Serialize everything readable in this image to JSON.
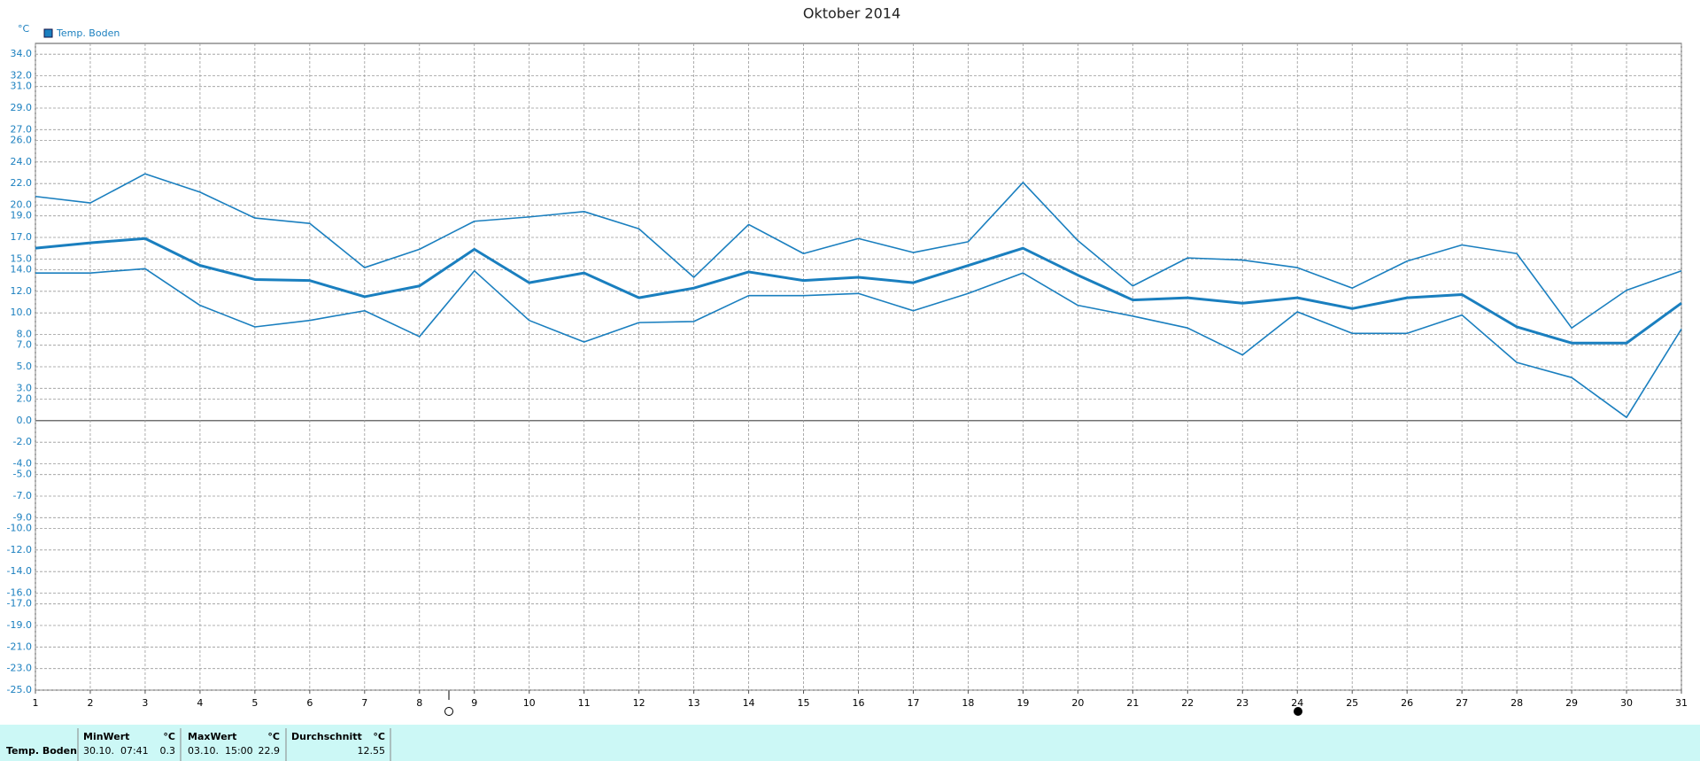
{
  "chart_data": {
    "type": "line",
    "title": "Oktober 2014",
    "y_unit": "°C",
    "legend": "Temp. Boden",
    "x": [
      1,
      2,
      3,
      4,
      5,
      6,
      7,
      8,
      9,
      10,
      11,
      12,
      13,
      14,
      15,
      16,
      17,
      18,
      19,
      20,
      21,
      22,
      23,
      24,
      25,
      26,
      27,
      28,
      29,
      30,
      31
    ],
    "xlim": [
      1,
      31
    ],
    "xticks": [
      1,
      2,
      3,
      4,
      5,
      6,
      7,
      8,
      9,
      10,
      11,
      12,
      13,
      14,
      15,
      16,
      17,
      18,
      19,
      20,
      21,
      22,
      23,
      24,
      25,
      26,
      27,
      28,
      29,
      30,
      31
    ],
    "ylim": [
      -25,
      35
    ],
    "yticks": [
      {
        "value": 34,
        "label": "34.0"
      },
      {
        "value": 32,
        "label": "32.0"
      },
      {
        "value": 31,
        "label": "31.0"
      },
      {
        "value": 29,
        "label": "29.0"
      },
      {
        "value": 27,
        "label": "27.0"
      },
      {
        "value": 26,
        "label": "26.0"
      },
      {
        "value": 24,
        "label": "24.0"
      },
      {
        "value": 22,
        "label": "22.0"
      },
      {
        "value": 20,
        "label": "20.0"
      },
      {
        "value": 19,
        "label": "19.0"
      },
      {
        "value": 17,
        "label": "17.0"
      },
      {
        "value": 15,
        "label": "15.0"
      },
      {
        "value": 14,
        "label": "14.0"
      },
      {
        "value": 12,
        "label": "12.0"
      },
      {
        "value": 10,
        "label": "10.0"
      },
      {
        "value": 8,
        "label": "8.0"
      },
      {
        "value": 7,
        "label": "7.0"
      },
      {
        "value": 5,
        "label": "5.0"
      },
      {
        "value": 3,
        "label": "3.0"
      },
      {
        "value": 2,
        "label": "2.0"
      },
      {
        "value": 0,
        "label": "0.0"
      },
      {
        "value": -2,
        "label": "-2.0"
      },
      {
        "value": -4,
        "label": "-4.0"
      },
      {
        "value": -5,
        "label": "-5.0"
      },
      {
        "value": -7,
        "label": "-7.0"
      },
      {
        "value": -9,
        "label": "-9.0"
      },
      {
        "value": -10,
        "label": "-10.0"
      },
      {
        "value": -12,
        "label": "-12.0"
      },
      {
        "value": -14,
        "label": "-14.0"
      },
      {
        "value": -16,
        "label": "-16.0"
      },
      {
        "value": -17,
        "label": "-17.0"
      },
      {
        "value": -19,
        "label": "-19.0"
      },
      {
        "value": -21,
        "label": "-21.0"
      },
      {
        "value": -23,
        "label": "-23.0"
      },
      {
        "value": -25,
        "label": "-25.0"
      }
    ],
    "grid": true,
    "color": "#1a7fbf",
    "series": [
      {
        "color": "#1a7fbf",
        "width": 1.6,
        "values": [
          20.8,
          20.2,
          22.9,
          21.2,
          18.8,
          18.3,
          14.2,
          15.9,
          18.5,
          18.9,
          19.4,
          17.8,
          13.3,
          18.2,
          15.5,
          16.9,
          15.6,
          16.6,
          22.1,
          16.7,
          12.5,
          15.1,
          14.9,
          14.2,
          12.3,
          14.8,
          16.3,
          15.5,
          8.6,
          12.1,
          13.9
        ]
      },
      {
        "color": "#1a7fbf",
        "width": 3,
        "values": [
          16.0,
          16.5,
          16.9,
          14.4,
          13.1,
          13.0,
          11.5,
          12.5,
          15.9,
          12.8,
          13.7,
          11.4,
          12.3,
          13.8,
          13.0,
          13.3,
          12.8,
          14.4,
          16.0,
          13.5,
          11.2,
          11.4,
          10.9,
          11.4,
          10.4,
          11.4,
          11.7,
          8.7,
          7.2,
          7.2,
          10.9
        ]
      },
      {
        "color": "#1a7fbf",
        "width": 1.6,
        "values": [
          13.7,
          13.7,
          14.1,
          10.7,
          8.7,
          9.3,
          10.2,
          7.8,
          13.9,
          9.3,
          7.3,
          9.1,
          9.2,
          11.6,
          11.6,
          11.8,
          10.2,
          11.8,
          13.7,
          10.7,
          9.7,
          8.6,
          6.1,
          10.1,
          8.1,
          8.1,
          9.8,
          5.4,
          4.0,
          0.3,
          8.5
        ]
      }
    ]
  },
  "table": {
    "headers": [
      "MinWert",
      "°C",
      "MaxWert",
      "°C",
      "Durchschnitt",
      "°C"
    ],
    "row": [
      "Temp. Boden",
      "30.10.  07:41",
      "0.3",
      "03.10.  15:00",
      "22.9",
      "12.55"
    ]
  }
}
